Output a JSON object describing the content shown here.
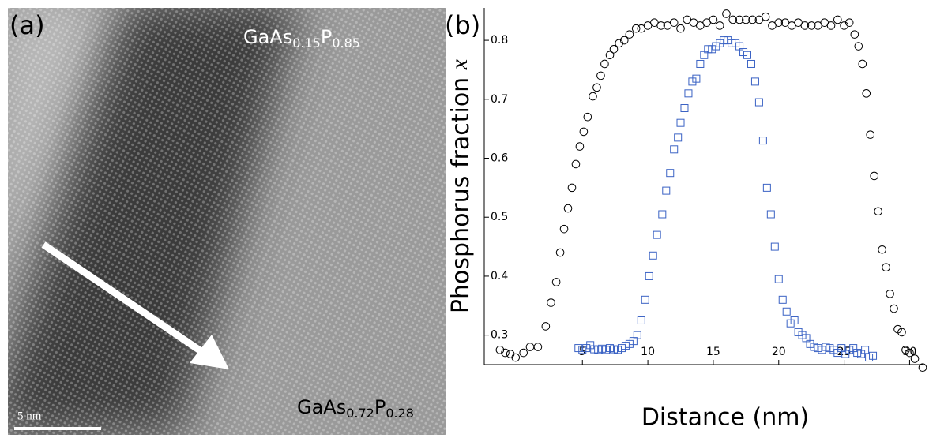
{
  "panel_a": {
    "label": "(a)",
    "top_label": {
      "el1": "GaAs",
      "sub1": "0.15",
      "el2": "P",
      "sub2": "0.85"
    },
    "bottom_label": {
      "el1": "GaAs",
      "sub1": "0.72",
      "el2": "P",
      "sub2": "0.28"
    },
    "scale_bar": "5 nm"
  },
  "chart_data": {
    "type": "scatter",
    "panel_label": "(b)",
    "x_label": "Distance (nm)",
    "y_label": "Phosphorus fraction",
    "y_label_var": "x",
    "xlim": [
      -2.5,
      31
    ],
    "ylim": [
      0.25,
      0.855
    ],
    "xticks": [
      5,
      10,
      15,
      20,
      25,
      30
    ],
    "yticks": [
      0.3,
      0.4,
      0.5,
      0.6,
      0.7,
      0.8
    ],
    "series": [
      {
        "color": "#000000",
        "marker": "circle",
        "x": [
          -1.3,
          -0.9,
          -0.5,
          -0.1,
          0.5,
          1.0,
          1.6,
          2.2,
          2.6,
          3.0,
          3.3,
          3.6,
          3.9,
          4.2,
          4.5,
          4.8,
          5.1,
          5.4,
          5.8,
          6.1,
          6.4,
          6.7,
          7.1,
          7.4,
          7.8,
          8.2,
          8.6,
          9.1,
          9.5,
          10.0,
          10.5,
          11.0,
          11.5,
          12.0,
          12.5,
          13.0,
          13.5,
          14.0,
          14.5,
          15.0,
          15.5,
          16.0,
          16.5,
          17.0,
          17.5,
          18.0,
          18.5,
          19.0,
          19.5,
          20.0,
          20.5,
          21.0,
          21.5,
          22.0,
          22.5,
          23.0,
          23.5,
          24.0,
          24.5,
          25.0,
          25.4,
          25.8,
          26.1,
          26.4,
          26.7,
          27.0,
          27.3,
          27.6,
          27.9,
          28.2,
          28.5,
          28.8,
          29.1,
          29.4,
          29.7,
          30.0,
          30.4,
          31.0
        ],
        "values": [
          0.275,
          0.27,
          0.268,
          0.262,
          0.27,
          0.28,
          0.28,
          0.315,
          0.355,
          0.39,
          0.44,
          0.48,
          0.515,
          0.55,
          0.59,
          0.62,
          0.645,
          0.67,
          0.705,
          0.72,
          0.74,
          0.76,
          0.775,
          0.785,
          0.795,
          0.8,
          0.81,
          0.82,
          0.82,
          0.825,
          0.83,
          0.825,
          0.825,
          0.83,
          0.82,
          0.835,
          0.83,
          0.825,
          0.83,
          0.835,
          0.825,
          0.845,
          0.835,
          0.835,
          0.835,
          0.835,
          0.835,
          0.84,
          0.825,
          0.83,
          0.83,
          0.825,
          0.83,
          0.825,
          0.825,
          0.825,
          0.83,
          0.825,
          0.835,
          0.825,
          0.83,
          0.81,
          0.79,
          0.76,
          0.71,
          0.64,
          0.57,
          0.51,
          0.445,
          0.415,
          0.37,
          0.345,
          0.31,
          0.305,
          0.275,
          0.27,
          0.26,
          0.245
        ]
      },
      {
        "color": "#3a62c4",
        "marker": "square",
        "x": [
          4.7,
          5.0,
          5.3,
          5.6,
          5.9,
          6.2,
          6.5,
          6.8,
          7.1,
          7.4,
          7.7,
          8.0,
          8.3,
          8.6,
          8.9,
          9.2,
          9.5,
          9.8,
          10.1,
          10.4,
          10.7,
          11.1,
          11.4,
          11.7,
          12.0,
          12.3,
          12.5,
          12.8,
          13.1,
          13.4,
          13.7,
          14.0,
          14.3,
          14.6,
          14.9,
          15.2,
          15.5,
          15.8,
          16.1,
          16.4,
          16.7,
          17.0,
          17.3,
          17.6,
          17.9,
          18.2,
          18.5,
          18.8,
          19.1,
          19.4,
          19.7,
          20.0,
          20.3,
          20.6,
          20.9,
          21.2,
          21.5,
          21.8,
          22.1,
          22.4,
          22.7,
          23.0,
          23.3,
          23.6,
          23.9,
          24.2,
          24.5,
          24.8,
          25.1,
          25.4,
          25.7,
          26.0,
          26.3,
          26.6,
          26.9,
          27.2
        ],
        "values": [
          0.278,
          0.275,
          0.278,
          0.283,
          0.276,
          0.275,
          0.277,
          0.275,
          0.278,
          0.276,
          0.275,
          0.278,
          0.282,
          0.285,
          0.29,
          0.3,
          0.325,
          0.36,
          0.4,
          0.435,
          0.47,
          0.505,
          0.545,
          0.575,
          0.615,
          0.635,
          0.66,
          0.685,
          0.71,
          0.73,
          0.735,
          0.76,
          0.775,
          0.785,
          0.785,
          0.79,
          0.795,
          0.8,
          0.8,
          0.795,
          0.795,
          0.79,
          0.78,
          0.775,
          0.76,
          0.73,
          0.695,
          0.63,
          0.55,
          0.505,
          0.45,
          0.395,
          0.36,
          0.34,
          0.32,
          0.325,
          0.305,
          0.3,
          0.295,
          0.285,
          0.28,
          0.278,
          0.275,
          0.28,
          0.278,
          0.275,
          0.27,
          0.278,
          0.268,
          0.275,
          0.278,
          0.27,
          0.268,
          0.275,
          0.262,
          0.265
        ]
      }
    ]
  }
}
